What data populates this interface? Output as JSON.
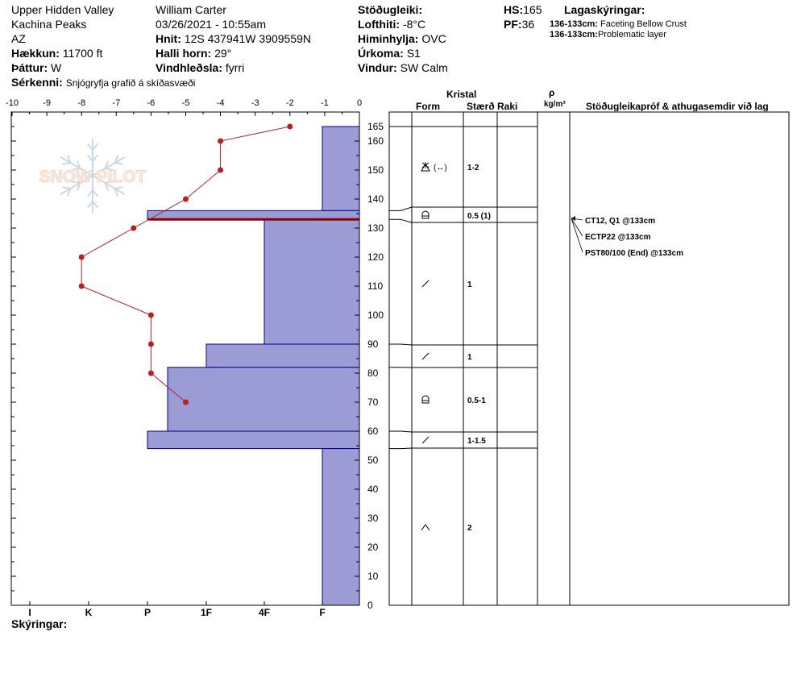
{
  "header": {
    "location": "Upper Hidden Valley",
    "range": "Kachina Peaks",
    "state": "AZ",
    "elevation_label": "Hækkun:",
    "elevation_value": "11700 ft",
    "aspect_label": "Þáttur:",
    "aspect_value": "W",
    "specifics_label": "Sérkenni:",
    "specifics_value": "Snjógryfja grafið á skíðasvæði",
    "observer": "William Carter",
    "datetime": "03/26/2021 - 10:55am",
    "coords_label": "Hnit:",
    "coords_value": "12S 437941W 3909559N",
    "slope_label": "Halli horn:",
    "slope_value": "29°",
    "wind_loading_label": "Vindhleðsla:",
    "wind_loading_value": "fyrri",
    "stability_label": "Stöðugleiki:",
    "stability_value": "",
    "air_temp_label": "Lofthiti:",
    "air_temp_value": "-8°C",
    "sky_label": "Himinhylja:",
    "sky_value": "OVC",
    "precip_label": "Úrkoma:",
    "precip_value": "S1",
    "wind_label": "Vindur:",
    "wind_value": "SW Calm",
    "hs_label": "HS:",
    "hs_value": "165",
    "pf_label": "PF:",
    "pf_value": "36",
    "layer_notes_title": "Lagaskýringar:",
    "layer_notes": [
      {
        "range": "136-133cm:",
        "text": "Faceting Bellow Crust"
      },
      {
        "range": "136-133cm:",
        "text": "Problematic layer"
      }
    ]
  },
  "footer": {
    "notes_label": "Skýringar:"
  },
  "logo_text": "SNOW PILOT",
  "colors": {
    "hardness_fill": "#9b9bd6",
    "hardness_stroke": "#00008b",
    "temp_line": "#b22222",
    "critical_layer": "#8b0000"
  },
  "table_headers": {
    "crystal": "Kristal",
    "form": "Form",
    "size": "Stærð",
    "moisture": "Raki",
    "density_symbol": "ρ",
    "density_unit": "kg/m³",
    "tests": "Stöðugleikapróf & athugasemdir við lag"
  },
  "chart_data": {
    "type": "area",
    "temperature_axis": {
      "label_ticks": [
        "-10",
        "-9",
        "-8",
        "-7",
        "-6",
        "-5",
        "-4",
        "-3",
        "-2",
        "-1",
        "0"
      ],
      "range": [
        -10,
        0
      ]
    },
    "height_axis": {
      "range": [
        0,
        165
      ],
      "tick_labels": [
        "0",
        "10",
        "20",
        "30",
        "40",
        "50",
        "60",
        "70",
        "80",
        "90",
        "100",
        "110",
        "120",
        "130",
        "140",
        "150",
        "160",
        "165"
      ]
    },
    "hardness_axis": {
      "labels": [
        "I",
        "K",
        "P",
        "1F",
        "4F",
        "F"
      ]
    },
    "temperature_profile": [
      {
        "height": 165,
        "temp": -2
      },
      {
        "height": 160,
        "temp": -4
      },
      {
        "height": 150,
        "temp": -4
      },
      {
        "height": 140,
        "temp": -5
      },
      {
        "height": 130,
        "temp": -6.5
      },
      {
        "height": 120,
        "temp": -8
      },
      {
        "height": 110,
        "temp": -8
      },
      {
        "height": 100,
        "temp": -6
      },
      {
        "height": 90,
        "temp": -6
      },
      {
        "height": 80,
        "temp": -6
      },
      {
        "height": 70,
        "temp": -5
      }
    ],
    "hardness_layers": [
      {
        "top": 165,
        "bottom": 136,
        "hardness": "F"
      },
      {
        "top": 136,
        "bottom": 133,
        "hardness": "P"
      },
      {
        "top": 133,
        "bottom": 90,
        "hardness": "4F"
      },
      {
        "top": 90,
        "bottom": 82,
        "hardness": "1F"
      },
      {
        "top": 82,
        "bottom": 60,
        "hardness": "P+"
      },
      {
        "top": 60,
        "bottom": 54,
        "hardness": "P"
      },
      {
        "top": 54,
        "bottom": 0,
        "hardness": "F"
      }
    ],
    "critical_layer_height": 133,
    "layers_table": [
      {
        "top": 165,
        "bottom": 136,
        "form_icon": "faceted-rounded-icon",
        "form_text": "(↔)",
        "size": "1-2"
      },
      {
        "top": 136,
        "bottom": 133,
        "form_icon": "melt-freeze-crust-icon",
        "form_text": "",
        "size": "0.5 (1)"
      },
      {
        "top": 133,
        "bottom": 90,
        "form_icon": "rounded-grain-icon",
        "form_text": "",
        "size": "1"
      },
      {
        "top": 90,
        "bottom": 82,
        "form_icon": "rounded-grain-icon",
        "form_text": "",
        "size": "1"
      },
      {
        "top": 82,
        "bottom": 60,
        "form_icon": "melt-freeze-crust-icon",
        "form_text": "",
        "size": "0.5-1"
      },
      {
        "top": 60,
        "bottom": 54,
        "form_icon": "rounded-grain-icon",
        "form_text": "",
        "size": "1-1.5"
      },
      {
        "top": 54,
        "bottom": 0,
        "form_icon": "depth-hoar-icon",
        "form_text": "",
        "size": "2"
      }
    ],
    "stability_tests": [
      "CT12, Q1 @133cm",
      "ECTP22 @133cm",
      "PST80/100 (End) @133cm"
    ]
  }
}
